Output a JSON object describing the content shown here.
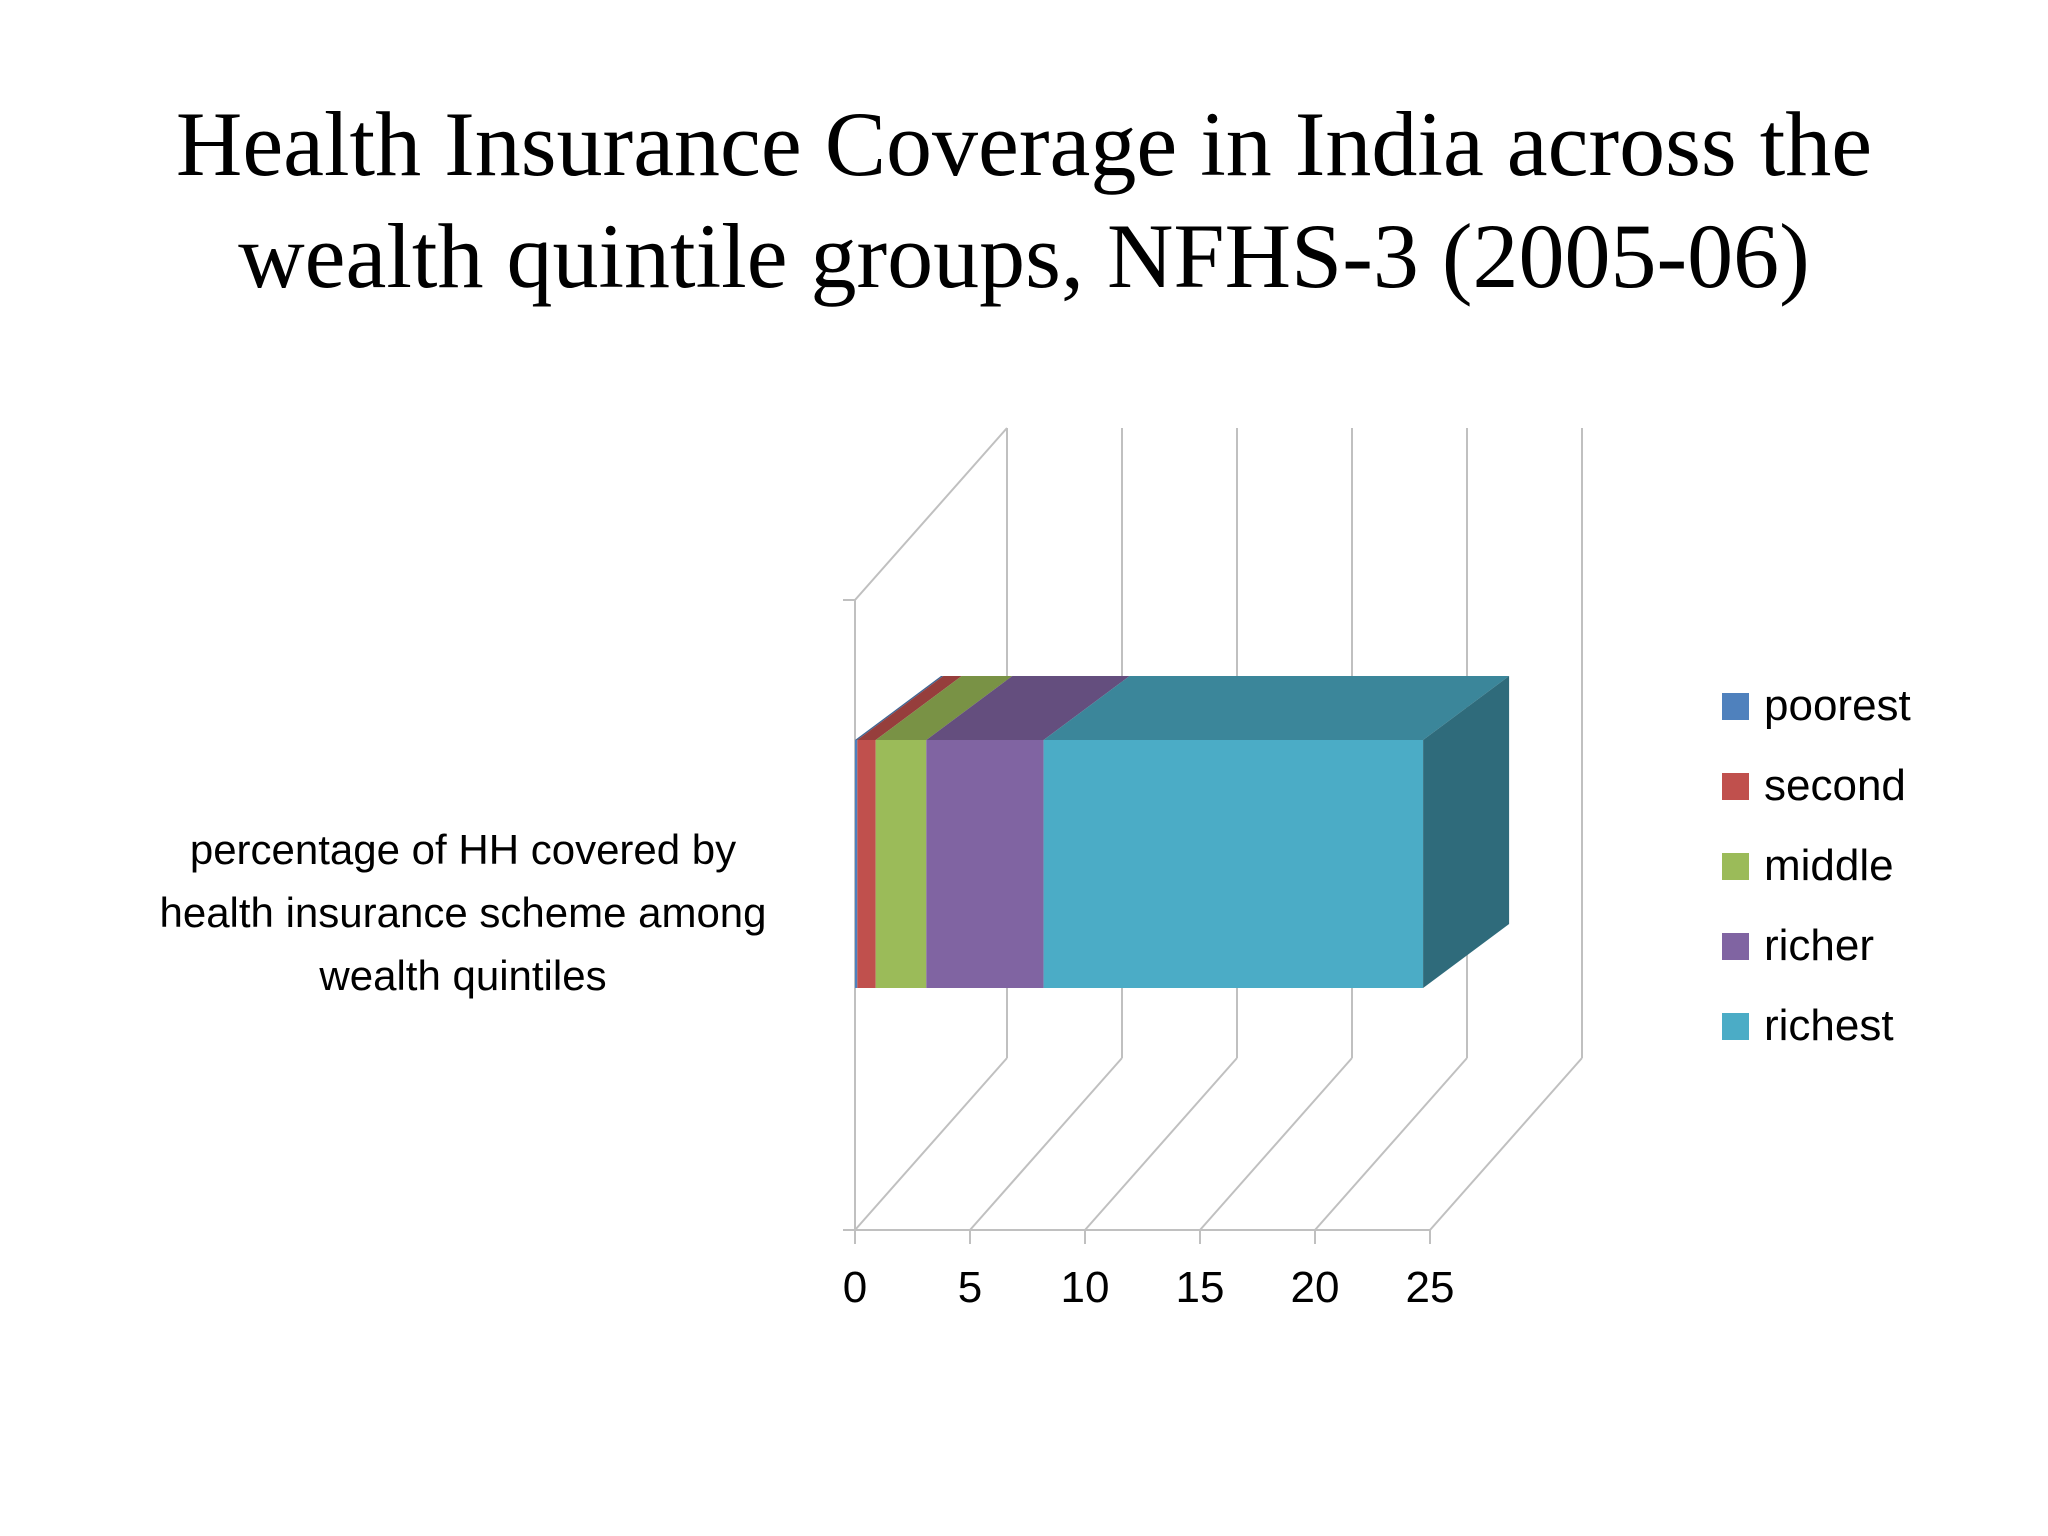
{
  "chart_data": {
    "type": "bar",
    "orientation": "horizontal",
    "stacked": true,
    "three_d": true,
    "title": "Health Insurance Coverage in India across the wealth quintile groups, NFHS-3 (2005-06)",
    "title_lines": [
      "Health Insurance Coverage in India across the",
      "wealth quintile groups, NFHS-3 (2005-06)"
    ],
    "categories": [
      "percentage of HH covered by health insurance scheme among wealth quintiles"
    ],
    "category_lines": [
      "percentage of HH covered by",
      "health insurance scheme among",
      "wealth quintiles"
    ],
    "series": [
      {
        "name": "poorest",
        "values": [
          0.1
        ],
        "color": "#4F81BD"
      },
      {
        "name": "second",
        "values": [
          0.8
        ],
        "color": "#C0504D"
      },
      {
        "name": "middle",
        "values": [
          2.2
        ],
        "color": "#9BBB59"
      },
      {
        "name": "richer",
        "values": [
          5.1
        ],
        "color": "#8064A2"
      },
      {
        "name": "richest",
        "values": [
          16.5
        ],
        "color": "#4BACC6"
      }
    ],
    "xlim": [
      0,
      25
    ],
    "xticks": [
      0,
      5,
      10,
      15,
      20,
      25
    ],
    "xtick_labels": [
      "0",
      "5",
      "10",
      "15",
      "20",
      "25"
    ],
    "grid": true,
    "legend_position": "right"
  }
}
